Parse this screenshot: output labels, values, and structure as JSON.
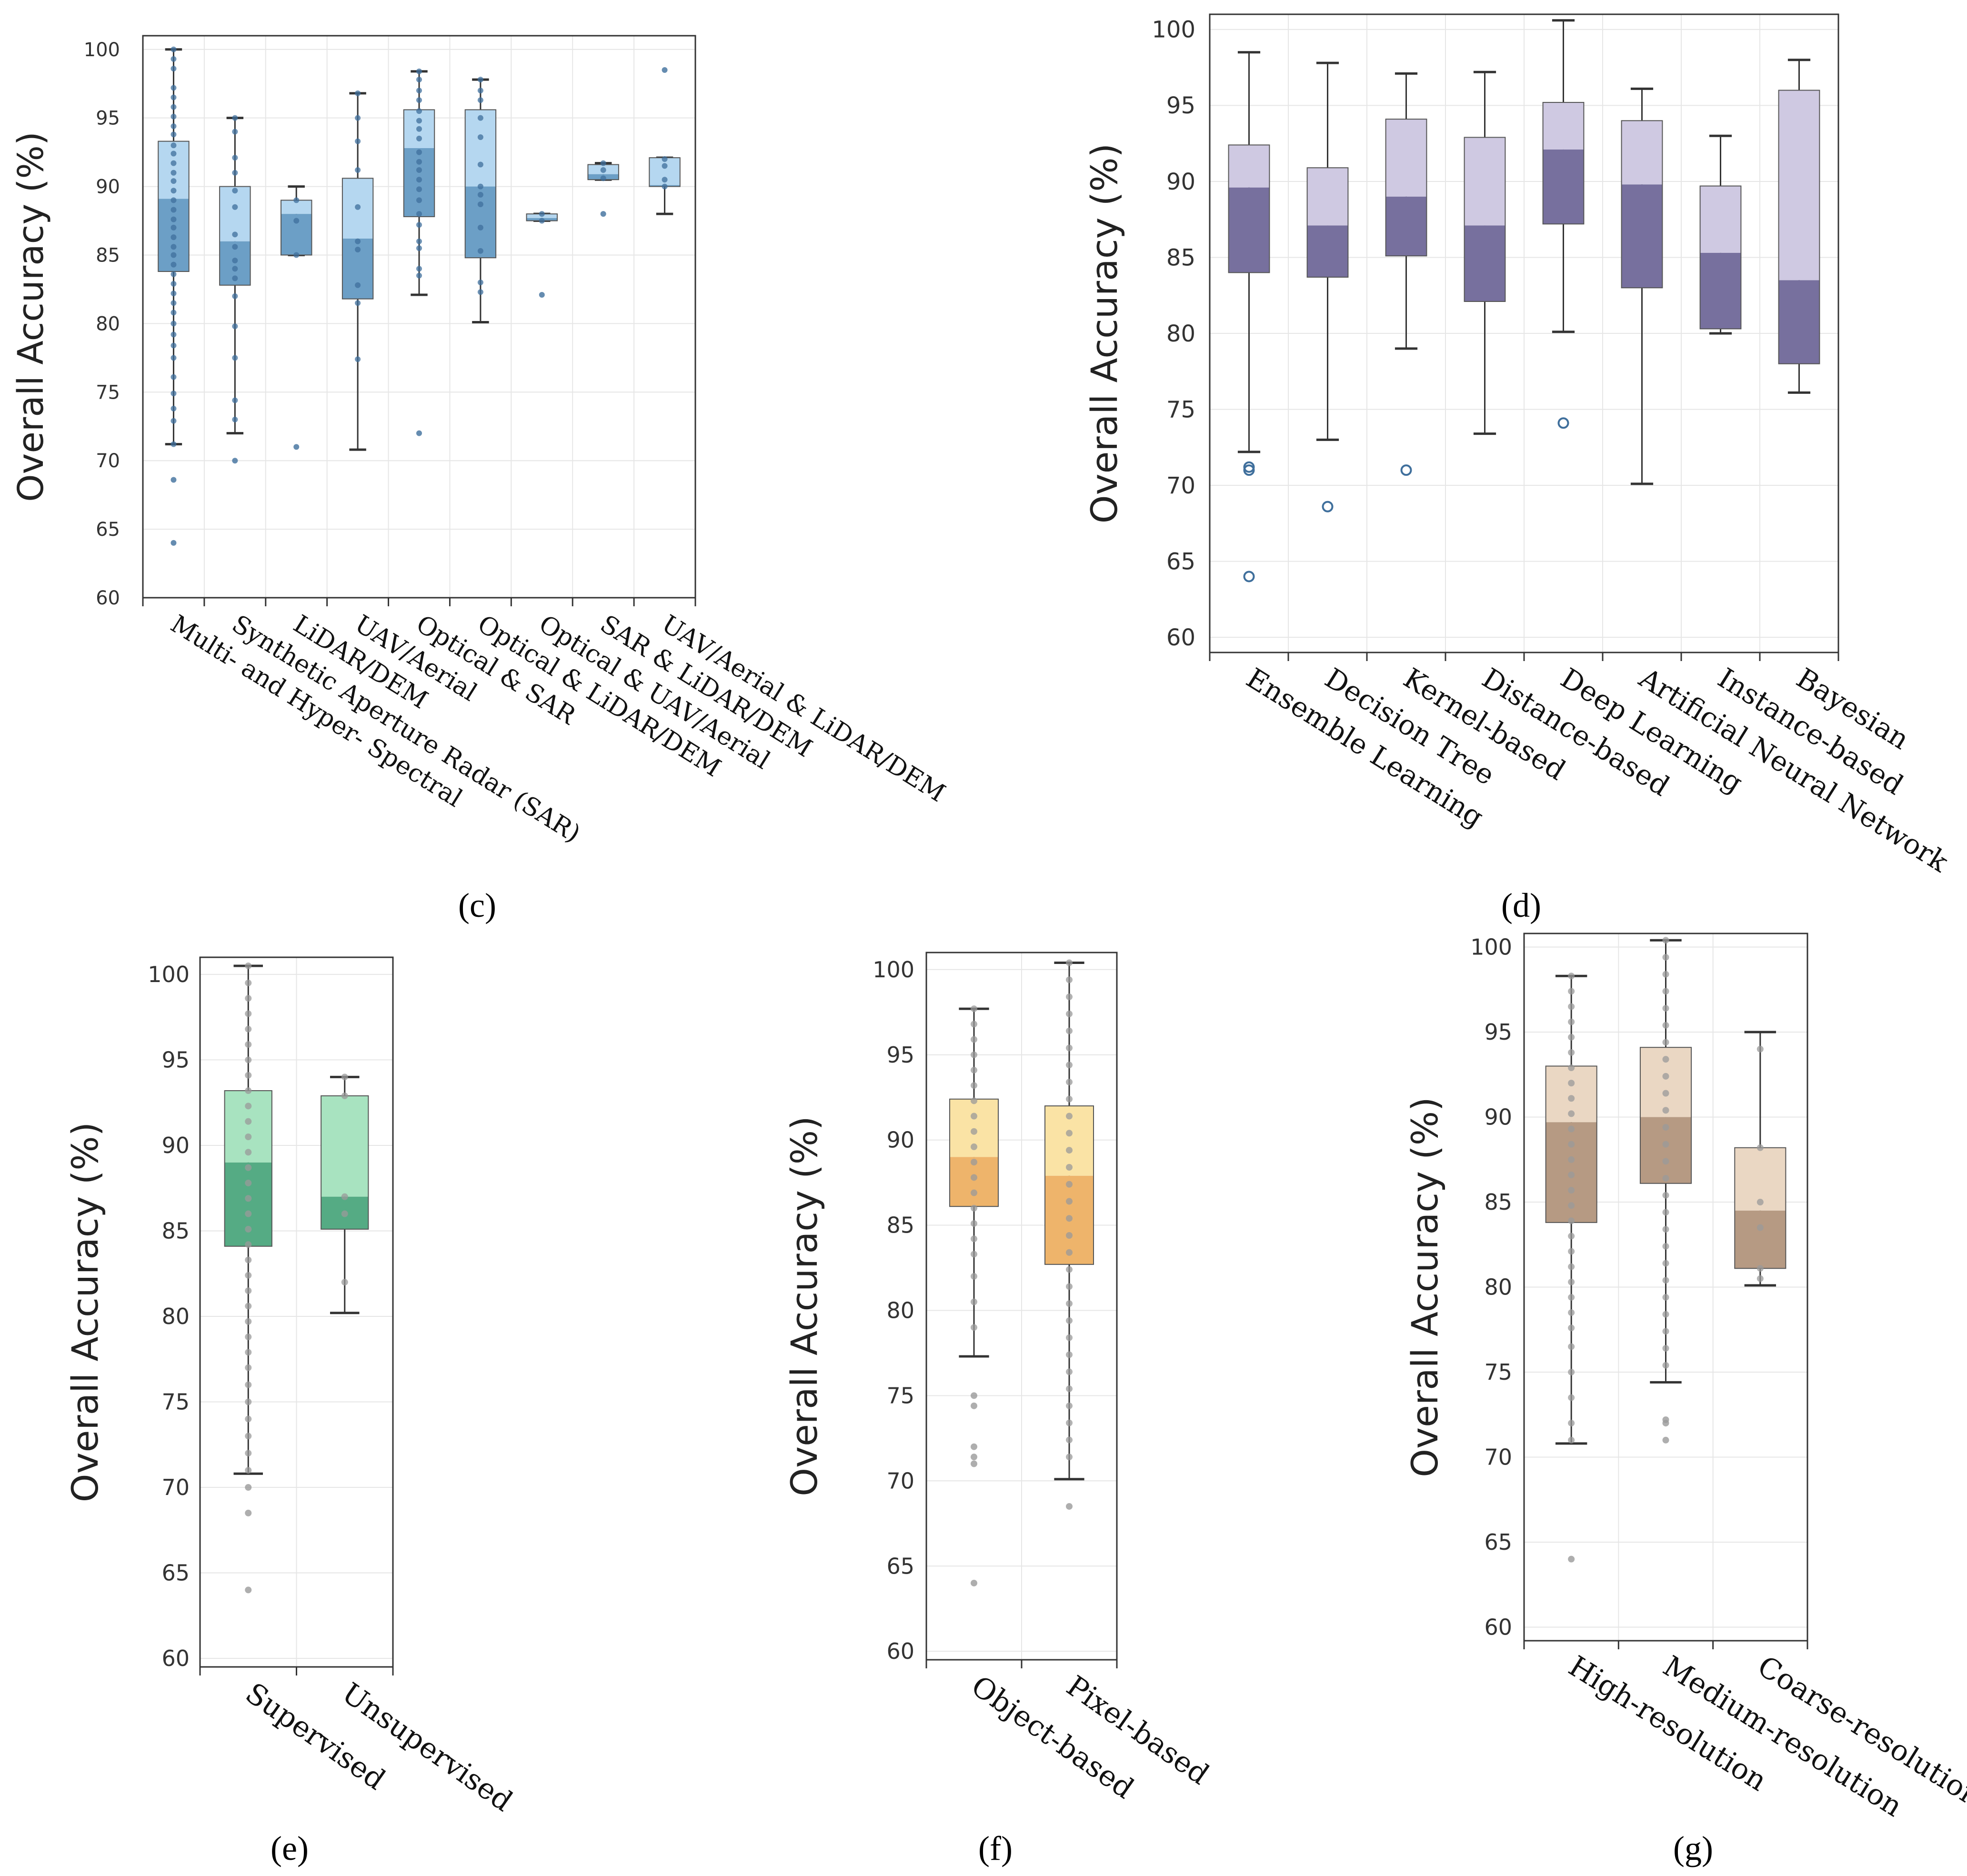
{
  "chart_data": [
    {
      "panel": "(c)",
      "type": "box",
      "title": "",
      "ylabel": "Overall Accuracy (%)",
      "xlabel": "",
      "ylim": [
        60,
        101
      ],
      "yticks": [
        60,
        65,
        70,
        75,
        80,
        85,
        90,
        95,
        100
      ],
      "colors": {
        "light": "#b5d7f0",
        "dark": "#6c9fc6",
        "point": "#3f6f9c",
        "line": "#333333"
      },
      "categories": [
        "Multi- and Hyper- Spectral",
        "Synthetic Aperture Radar (SAR)",
        "LiDAR/DEM",
        "UAV/Aerial",
        "Optical & SAR",
        "Optical & LiDAR/DEM",
        "Optical & UAV/Aerial",
        "SAR & LiDAR/DEM",
        "UAV/Aerial & LiDAR/DEM"
      ],
      "boxes": [
        {
          "whisker_low": 71.2,
          "q1": 83.8,
          "median": 89.1,
          "q3": 93.3,
          "whisker_high": 100,
          "outliers": [
            68.6,
            64.0
          ],
          "points": [
            100,
            99.3,
            98.6,
            97.2,
            96.5,
            95.8,
            95.1,
            94.4,
            93.8,
            93.0,
            92.4,
            91.7,
            91.0,
            90.4,
            89.7,
            89.0,
            88.3,
            87.6,
            87.0,
            86.3,
            85.6,
            85.0,
            84.3,
            83.6,
            82.9,
            82.2,
            81.5,
            80.8,
            80.0,
            79.2,
            78.4,
            77.5,
            76.1,
            74.9,
            73.8,
            72.9,
            71.2
          ]
        },
        {
          "whisker_low": 72.0,
          "q1": 82.8,
          "median": 86.0,
          "q3": 90.0,
          "whisker_high": 95.0,
          "outliers": [
            70.0
          ],
          "points": [
            95.0,
            94.0,
            92.1,
            91.0,
            89.7,
            88.5,
            86.5,
            85.6,
            84.6,
            84.0,
            83.3,
            82.0,
            79.8,
            77.5,
            74.4,
            73.0
          ]
        },
        {
          "whisker_low": 85.0,
          "q1": 85.0,
          "median": 88.0,
          "q3": 89.0,
          "whisker_high": 90.0,
          "outliers": [
            71.0
          ],
          "points": [
            89.0,
            87.5,
            85.0
          ]
        },
        {
          "whisker_low": 70.8,
          "q1": 81.8,
          "median": 86.2,
          "q3": 90.6,
          "whisker_high": 96.8,
          "outliers": [],
          "points": [
            96.8,
            95.0,
            93.3,
            91.2,
            88.5,
            86.0,
            85.4,
            82.8,
            81.5,
            77.4
          ]
        },
        {
          "whisker_low": 82.1,
          "q1": 87.8,
          "median": 92.8,
          "q3": 95.6,
          "whisker_high": 98.4,
          "outliers": [
            72.0
          ],
          "points": [
            98.4,
            97.8,
            97.0,
            96.3,
            95.5,
            94.8,
            94.2,
            93.5,
            92.5,
            91.8,
            91.2,
            90.5,
            89.8,
            89.0,
            88.0,
            87.2,
            86.0,
            85.5,
            84.0,
            83.5
          ]
        },
        {
          "whisker_low": 80.1,
          "q1": 84.8,
          "median": 90.0,
          "q3": 95.6,
          "whisker_high": 97.8,
          "outliers": [],
          "points": [
            97.8,
            97.0,
            96.3,
            95.0,
            93.6,
            91.6,
            90.0,
            89.4,
            88.7,
            87.0,
            85.3,
            83.0,
            82.3
          ]
        },
        {
          "whisker_low": 87.5,
          "q1": 87.5,
          "median": 87.7,
          "q3": 88.0,
          "whisker_high": 88.0,
          "outliers": [
            82.1
          ],
          "points": [
            88.0,
            87.5
          ]
        },
        {
          "whisker_low": 90.5,
          "q1": 90.5,
          "median": 90.9,
          "q3": 91.6,
          "whisker_high": 91.7,
          "outliers": [
            88.0
          ],
          "points": [
            91.7,
            91.2,
            90.6
          ]
        },
        {
          "whisker_low": 88.0,
          "q1": 90.0,
          "median": 90.1,
          "q3": 92.1,
          "whisker_high": 92.1,
          "outliers": [
            98.5
          ],
          "points": [
            92.0,
            91.5,
            90.5,
            90.0
          ]
        }
      ]
    },
    {
      "panel": "(d)",
      "type": "box",
      "title": "",
      "ylabel": "Overall Accuracy (%)",
      "xlabel": "",
      "ylim": [
        59,
        101
      ],
      "yticks": [
        60,
        65,
        70,
        75,
        80,
        85,
        90,
        95,
        100
      ],
      "colors": {
        "light": "#cfc9e2",
        "dark": "#77709e",
        "point": "#3f6f9c",
        "line": "#333333"
      },
      "categories": [
        "Ensemble Learning",
        "Decision Tree",
        "Kernel-based",
        "Distance-based",
        "Deep Learning",
        "Artificial Neural Network",
        "Instance-based",
        "Bayesian"
      ],
      "boxes": [
        {
          "whisker_low": 72.2,
          "q1": 84.0,
          "median": 89.6,
          "q3": 92.4,
          "whisker_high": 98.5,
          "outliers": [
            71.2,
            71.0,
            64.0
          ]
        },
        {
          "whisker_low": 73.0,
          "q1": 83.7,
          "median": 87.1,
          "q3": 90.9,
          "whisker_high": 97.8,
          "outliers": [
            68.6
          ]
        },
        {
          "whisker_low": 79.0,
          "q1": 85.1,
          "median": 89.0,
          "q3": 94.1,
          "whisker_high": 97.1,
          "outliers": [
            71.0
          ]
        },
        {
          "whisker_low": 73.4,
          "q1": 82.1,
          "median": 87.1,
          "q3": 92.9,
          "whisker_high": 97.2,
          "outliers": []
        },
        {
          "whisker_low": 80.1,
          "q1": 87.2,
          "median": 92.1,
          "q3": 95.2,
          "whisker_high": 100.6,
          "outliers": [
            74.1
          ]
        },
        {
          "whisker_low": 70.1,
          "q1": 83.0,
          "median": 89.8,
          "q3": 94.0,
          "whisker_high": 96.1,
          "outliers": []
        },
        {
          "whisker_low": 80.0,
          "q1": 80.3,
          "median": 85.3,
          "q3": 89.7,
          "whisker_high": 93.0,
          "outliers": []
        },
        {
          "whisker_low": 76.1,
          "q1": 78.0,
          "median": 83.5,
          "q3": 96.0,
          "whisker_high": 98.0,
          "outliers": []
        }
      ]
    },
    {
      "panel": "(e)",
      "type": "box",
      "title": "",
      "ylabel": "Overall Accuracy (%)",
      "xlabel": "",
      "ylim": [
        59.5,
        101
      ],
      "yticks": [
        60,
        65,
        70,
        75,
        80,
        85,
        90,
        95,
        100
      ],
      "colors": {
        "light": "#a8e3c0",
        "dark": "#55ab84",
        "point": "#9a9a9a",
        "line": "#333333"
      },
      "categories": [
        "Supervised",
        "Unsupervised"
      ],
      "boxes": [
        {
          "whisker_low": 70.8,
          "q1": 84.1,
          "median": 89.0,
          "q3": 93.2,
          "whisker_high": 100.5,
          "outliers": [
            70.0,
            68.5,
            64.0
          ],
          "points": [
            100.5,
            99.5,
            98.6,
            97.7,
            96.8,
            95.9,
            95.0,
            94.1,
            93.2,
            92.3,
            91.4,
            90.5,
            89.6,
            88.7,
            87.8,
            86.9,
            86.0,
            85.1,
            84.2,
            83.3,
            82.4,
            81.5,
            80.6,
            79.7,
            78.8,
            77.9,
            77.0,
            76.0,
            75.0,
            74.0,
            73.0,
            72.0,
            71.0
          ]
        },
        {
          "whisker_low": 80.2,
          "q1": 85.1,
          "median": 87.0,
          "q3": 92.9,
          "whisker_high": 94.0,
          "outliers": [],
          "points": [
            94.0,
            92.9,
            87.0,
            86.0,
            82.0
          ]
        }
      ]
    },
    {
      "panel": "(f)",
      "type": "box",
      "title": "",
      "ylabel": "Overall Accuracy (%)",
      "xlabel": "",
      "ylim": [
        59.5,
        101
      ],
      "yticks": [
        60,
        65,
        70,
        75,
        80,
        85,
        90,
        95,
        100
      ],
      "colors": {
        "light": "#fae3a5",
        "dark": "#eeb46b",
        "point": "#9a9a9a",
        "line": "#333333"
      },
      "categories": [
        "Object-based",
        "Pixel-based"
      ],
      "boxes": [
        {
          "whisker_low": 77.3,
          "q1": 86.1,
          "median": 89.0,
          "q3": 92.4,
          "whisker_high": 97.7,
          "outliers": [
            75.0,
            74.4,
            72.0,
            71.4,
            71.0,
            64.0
          ],
          "points": [
            97.7,
            96.8,
            95.9,
            95.0,
            94.1,
            93.2,
            92.3,
            91.4,
            90.5,
            89.6,
            88.7,
            87.8,
            86.9,
            86.0,
            85.1,
            84.2,
            83.3,
            82.0,
            80.5,
            79.0
          ]
        },
        {
          "whisker_low": 70.1,
          "q1": 82.7,
          "median": 87.9,
          "q3": 92.0,
          "whisker_high": 100.4,
          "outliers": [
            68.5
          ],
          "points": [
            100.4,
            99.4,
            98.4,
            97.4,
            96.4,
            95.4,
            94.4,
            93.4,
            92.4,
            91.4,
            90.4,
            89.4,
            88.4,
            87.4,
            86.4,
            85.4,
            84.4,
            83.4,
            82.4,
            81.4,
            80.4,
            79.4,
            78.4,
            77.4,
            76.4,
            75.4,
            74.4,
            73.4,
            72.4,
            71.4
          ]
        }
      ]
    },
    {
      "panel": "(g)",
      "type": "box",
      "title": "",
      "ylabel": "Overall Accuracy (%)",
      "xlabel": "",
      "ylim": [
        59.2,
        100.8
      ],
      "yticks": [
        60,
        65,
        70,
        75,
        80,
        85,
        90,
        95,
        100
      ],
      "colors": {
        "light": "#ead7c3",
        "dark": "#b69a83",
        "point": "#9a9a9a",
        "line": "#333333"
      },
      "categories": [
        "High-resolution",
        "Medium-resolution",
        "Coarse-resolution"
      ],
      "boxes": [
        {
          "whisker_low": 70.8,
          "q1": 83.8,
          "median": 89.7,
          "q3": 93.0,
          "whisker_high": 98.3,
          "outliers": [
            64.0
          ],
          "points": [
            98.3,
            97.4,
            96.5,
            95.6,
            94.7,
            93.8,
            92.9,
            92.0,
            91.1,
            90.2,
            89.3,
            88.4,
            87.5,
            86.6,
            85.7,
            84.8,
            83.9,
            83.0,
            82.1,
            81.2,
            80.3,
            79.4,
            78.5,
            77.6,
            76.5,
            75.0,
            73.5,
            72.0,
            71.0
          ]
        },
        {
          "whisker_low": 74.4,
          "q1": 86.1,
          "median": 90.0,
          "q3": 94.1,
          "whisker_high": 100.4,
          "outliers": [
            72.2,
            72.0,
            71.0
          ],
          "points": [
            100.4,
            99.4,
            98.4,
            97.4,
            96.4,
            95.4,
            94.4,
            93.4,
            92.4,
            91.4,
            90.4,
            89.4,
            88.4,
            87.4,
            86.4,
            85.4,
            84.4,
            83.4,
            82.4,
            81.4,
            80.4,
            79.4,
            78.4,
            77.4,
            76.4,
            75.4
          ]
        },
        {
          "whisker_low": 80.1,
          "q1": 81.1,
          "median": 84.5,
          "q3": 88.2,
          "whisker_high": 95.0,
          "outliers": [],
          "points": [
            94.0,
            88.2,
            85.0,
            83.5,
            81.1,
            80.5
          ]
        }
      ]
    }
  ]
}
